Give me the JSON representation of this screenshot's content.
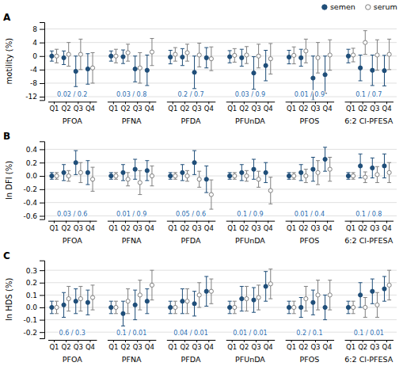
{
  "chart_data": [
    {
      "type": "errorbar",
      "title": "A",
      "ylabel": "motility (%)",
      "groups": [
        "PFOA",
        "PFNA",
        "PFDA",
        "PFUnDA",
        "PFOS",
        "6:2 Cl-PFESA"
      ],
      "categories": [
        "Q1",
        "Q2",
        "Q3",
        "Q4"
      ],
      "ylim": [
        -13,
        10
      ],
      "yticks": [
        -12,
        -8,
        -4,
        0,
        4,
        8
      ],
      "grid": true,
      "legend": "upper right",
      "annotations": [
        "0.02 / 0.2",
        "0.03 / 0.8",
        "0.2 / 0.7",
        "0.03 / 0.9",
        "0.01 / 0.9",
        "0.1 / 0.7"
      ],
      "series": [
        {
          "name": "semen",
          "color": "#1f4e79",
          "marker": "circle",
          "values": [
            [
              0.0,
              -0.5,
              -4.5,
              -3.8
            ],
            [
              0.0,
              -0.2,
              -3.8,
              -4.2
            ],
            [
              -0.3,
              -0.3,
              -4.8,
              -0.5
            ],
            [
              -0.2,
              -0.5,
              -5.0,
              -2.8
            ],
            [
              -0.3,
              -0.5,
              -6.5,
              -5.5
            ],
            [
              0.0,
              -3.5,
              -4.2,
              -4.3
            ]
          ],
          "errors": [
            [
              1.5,
              2.0,
              4.5,
              4.5
            ],
            [
              1.5,
              2.0,
              3.8,
              4.5
            ],
            [
              2.0,
              2.5,
              4.8,
              3.0
            ],
            [
              1.8,
              2.5,
              4.8,
              4.5
            ],
            [
              2.0,
              2.5,
              6.5,
              5.5
            ],
            [
              2.0,
              3.8,
              4.5,
              4.5
            ]
          ]
        },
        {
          "name": "serum",
          "color": "#808080",
          "marker": "open-circle",
          "values": [
            [
              0.0,
              0.5,
              0.5,
              -3.5
            ],
            [
              0.0,
              1.0,
              -3.5,
              1.2
            ],
            [
              0.5,
              1.0,
              0.3,
              -0.8
            ],
            [
              0.2,
              0.3,
              0.0,
              -0.8
            ],
            [
              0.2,
              1.5,
              -0.5,
              0.3
            ],
            [
              0.3,
              4.0,
              0.3,
              0.5
            ]
          ],
          "errors": [
            [
              2.0,
              3.5,
              4.5,
              4.5
            ],
            [
              2.0,
              2.5,
              4.5,
              4.0
            ],
            [
              2.0,
              2.5,
              3.5,
              3.5
            ],
            [
              2.0,
              2.5,
              3.5,
              4.5
            ],
            [
              2.5,
              3.5,
              4.5,
              4.5
            ],
            [
              2.0,
              3.5,
              4.5,
              4.5
            ]
          ]
        }
      ]
    },
    {
      "type": "errorbar",
      "title": "B",
      "ylabel": "ln DFI (%)",
      "groups": [
        "PFOA",
        "PFNA",
        "PFDA",
        "PFUnDA",
        "PFOS",
        "6:2 Cl-PFESA"
      ],
      "categories": [
        "Q1",
        "Q2",
        "Q3",
        "Q4"
      ],
      "ylim": [
        -0.65,
        0.52
      ],
      "yticks": [
        -0.6,
        -0.4,
        -0.2,
        {
          "value": 0,
          "label": "0.0"
        },
        0.2,
        0.4
      ],
      "grid": true,
      "annotations": [
        "0.03 / 0.6",
        "0.01 / 0.9",
        "0.05 / 0.6",
        "0.1 / 0.9",
        "0.01 / 0.4",
        "0.1 / 0.8"
      ],
      "series": [
        {
          "color": "#1f4e79",
          "marker": "circle",
          "values": [
            [
              0.0,
              0.05,
              0.2,
              0.05
            ],
            [
              0.0,
              0.05,
              0.1,
              0.08
            ],
            [
              0.0,
              0.05,
              0.2,
              -0.05
            ],
            [
              0.0,
              0.05,
              0.1,
              0.05
            ],
            [
              0.0,
              0.05,
              0.1,
              0.25
            ],
            [
              0.0,
              0.15,
              0.12,
              0.15
            ]
          ],
          "errors": [
            [
              0.05,
              0.12,
              0.18,
              0.18
            ],
            [
              0.05,
              0.12,
              0.15,
              0.15
            ],
            [
              0.05,
              0.12,
              0.18,
              0.2
            ],
            [
              0.05,
              0.12,
              0.15,
              0.15
            ],
            [
              0.05,
              0.12,
              0.18,
              0.18
            ],
            [
              0.05,
              0.18,
              0.15,
              0.18
            ]
          ]
        },
        {
          "color": "#808080",
          "marker": "open-circle",
          "values": [
            [
              0.0,
              0.0,
              0.05,
              -0.05
            ],
            [
              0.0,
              -0.05,
              -0.1,
              0.0
            ],
            [
              0.0,
              0.0,
              -0.05,
              -0.28
            ],
            [
              0.0,
              0.0,
              -0.05,
              -0.22
            ],
            [
              0.0,
              0.0,
              0.05,
              0.1
            ],
            [
              0.0,
              -0.02,
              0.02,
              0.05
            ]
          ],
          "errors": [
            [
              0.05,
              0.08,
              0.15,
              0.18
            ],
            [
              0.05,
              0.1,
              0.18,
              0.15
            ],
            [
              0.05,
              0.08,
              0.12,
              0.22
            ],
            [
              0.05,
              0.08,
              0.12,
              0.2
            ],
            [
              0.05,
              0.1,
              0.18,
              0.18
            ],
            [
              0.05,
              0.08,
              0.12,
              0.15
            ]
          ]
        }
      ]
    },
    {
      "type": "errorbar",
      "title": "C",
      "ylabel": "ln HDS (%)",
      "groups": [
        "PFOA",
        "PFNA",
        "PFDA",
        "PFUnDA",
        "PFOS",
        "6:2 Cl-PFESA"
      ],
      "categories": [
        "Q1",
        "Q2",
        "Q3",
        "Q4"
      ],
      "ylim": [
        -0.25,
        0.38
      ],
      "yticks": [
        -0.2,
        -0.1,
        {
          "value": 0,
          "label": "0.0"
        },
        0.1,
        0.2,
        0.3
      ],
      "grid": true,
      "annotations": [
        "0.6 / 0.3",
        "0.1 / 0.01",
        "0.04 / 0.01",
        "0.01 / 0.01",
        "0.2 / 0.1",
        "0.1 / 0.01"
      ],
      "series": [
        {
          "color": "#1f4e79",
          "marker": "circle",
          "values": [
            [
              0.0,
              0.02,
              0.05,
              0.04
            ],
            [
              0.0,
              -0.05,
              0.02,
              0.05
            ],
            [
              0.0,
              0.05,
              0.03,
              0.13
            ],
            [
              0.0,
              0.07,
              0.06,
              0.17
            ],
            [
              0.0,
              0.0,
              0.04,
              0.0
            ],
            [
              0.0,
              0.1,
              0.13,
              0.15
            ]
          ],
          "errors": [
            [
              0.05,
              0.1,
              0.1,
              0.1
            ],
            [
              0.05,
              0.1,
              0.12,
              0.1
            ],
            [
              0.05,
              0.1,
              0.1,
              0.12
            ],
            [
              0.05,
              0.1,
              0.1,
              0.12
            ],
            [
              0.05,
              0.08,
              0.1,
              0.1
            ],
            [
              0.05,
              0.1,
              0.1,
              0.1
            ]
          ]
        },
        {
          "color": "#808080",
          "marker": "open-circle",
          "values": [
            [
              0.0,
              0.07,
              0.07,
              0.08
            ],
            [
              0.0,
              0.05,
              0.1,
              0.18
            ],
            [
              0.0,
              0.05,
              0.1,
              0.13
            ],
            [
              0.0,
              0.07,
              0.08,
              0.19
            ],
            [
              0.0,
              0.07,
              0.1,
              0.1
            ],
            [
              0.0,
              0.0,
              0.02,
              0.18
            ]
          ],
          "errors": [
            [
              0.05,
              0.1,
              0.1,
              0.1
            ],
            [
              0.05,
              0.1,
              0.12,
              0.12
            ],
            [
              0.05,
              0.1,
              0.1,
              0.1
            ],
            [
              0.05,
              0.1,
              0.1,
              0.12
            ],
            [
              0.05,
              0.1,
              0.12,
              0.12
            ],
            [
              0.05,
              0.08,
              0.1,
              0.12
            ]
          ]
        }
      ]
    }
  ]
}
